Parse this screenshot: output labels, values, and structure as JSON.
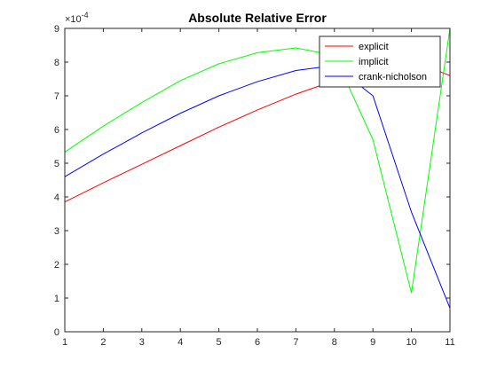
{
  "chart_data": {
    "type": "line",
    "title": "Absolute Relative Error",
    "xlabel": "",
    "ylabel": "",
    "exponent_label": "×10",
    "exponent_power": "-4",
    "xlim": [
      1,
      11
    ],
    "ylim": [
      0,
      9
    ],
    "x": [
      1,
      2,
      3,
      4,
      5,
      6,
      7,
      8,
      9,
      10,
      11
    ],
    "x_ticks": [
      "1",
      "2",
      "3",
      "4",
      "5",
      "6",
      "7",
      "8",
      "9",
      "10",
      "11"
    ],
    "y_ticks": [
      "0",
      "1",
      "2",
      "3",
      "4",
      "5",
      "6",
      "7",
      "8",
      "9"
    ],
    "grid": false,
    "box": true,
    "legend_position": "top-right",
    "series": [
      {
        "name": "explicit",
        "color": "#ff0000",
        "values": [
          3.85,
          4.42,
          4.97,
          5.52,
          6.07,
          6.58,
          7.05,
          7.45,
          7.88,
          8.05,
          7.6
        ]
      },
      {
        "name": "implicit",
        "color": "#00ff00",
        "values": [
          5.33,
          6.1,
          6.8,
          7.45,
          7.95,
          8.28,
          8.42,
          8.2,
          5.7,
          1.15,
          9.0
        ]
      },
      {
        "name": "crank-nicholson",
        "color": "#0000ff",
        "values": [
          4.6,
          5.27,
          5.9,
          6.48,
          7.0,
          7.42,
          7.75,
          7.9,
          7.0,
          3.55,
          0.7
        ]
      }
    ]
  }
}
